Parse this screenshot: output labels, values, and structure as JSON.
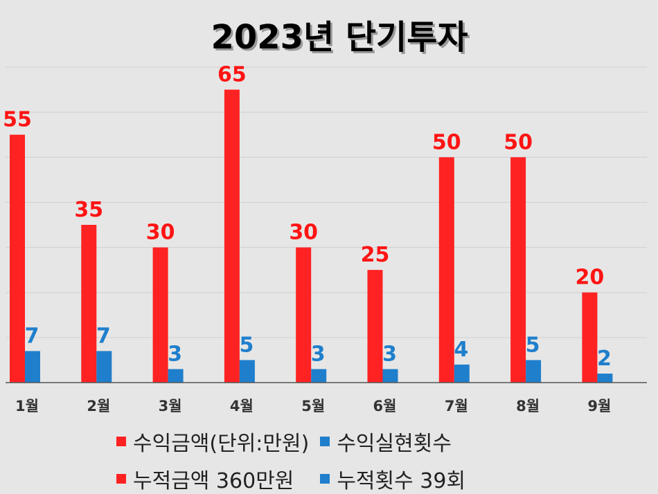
{
  "colors": {
    "revenue": "#ff2222",
    "count": "#1f7fcc"
  },
  "legend": [
    {
      "label": "수익금액(단위:만원)",
      "color": "#ff2222"
    },
    {
      "label": "수익실현횟수",
      "color": "#1f7fcc"
    },
    {
      "label": "누적금액 360만원",
      "color": "#ff2222"
    },
    {
      "label": "누적횟수 39회",
      "color": "#1f7fcc"
    }
  ],
  "chart_data": {
    "type": "bar",
    "title": "2023년 단기투자",
    "categories": [
      "1월",
      "2월",
      "3월",
      "4월",
      "5월",
      "6월",
      "7월",
      "8월",
      "9월"
    ],
    "series": [
      {
        "name": "수익금액(단위:만원)",
        "values": [
          55,
          35,
          30,
          65,
          30,
          25,
          50,
          50,
          20
        ]
      },
      {
        "name": "수익실현횟수",
        "values": [
          7,
          7,
          3,
          5,
          3,
          3,
          4,
          5,
          2
        ]
      }
    ],
    "ylim": [
      0,
      70
    ],
    "grid": true,
    "legend_position": "bottom"
  }
}
